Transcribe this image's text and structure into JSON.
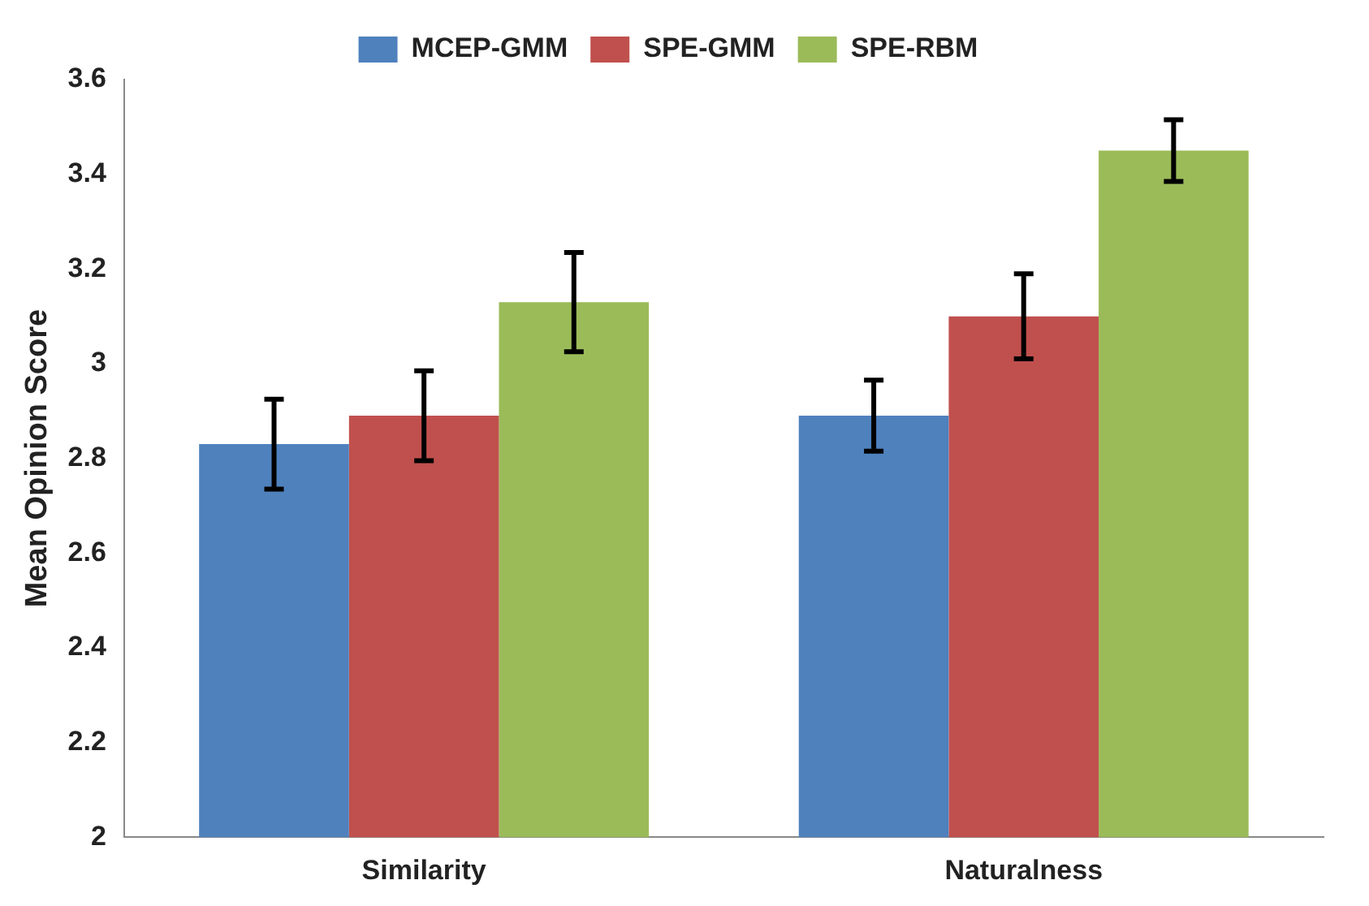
{
  "chart_data": {
    "type": "bar",
    "ylabel": "Mean Opinion Score",
    "categories": [
      "Similarity",
      "Naturalness"
    ],
    "series": [
      {
        "name": "MCEP-GMM",
        "color": "#4f81bd",
        "values": [
          2.83,
          2.89
        ],
        "errors": [
          0.095,
          0.075
        ]
      },
      {
        "name": "SPE-GMM",
        "color": "#c0504d",
        "values": [
          2.89,
          3.1
        ],
        "errors": [
          0.095,
          0.09
        ]
      },
      {
        "name": "SPE-RBM",
        "color": "#9bbb59",
        "values": [
          3.13,
          3.45
        ],
        "errors": [
          0.105,
          0.065
        ]
      }
    ],
    "ylim": [
      2,
      3.6
    ],
    "yticks": [
      2,
      2.2,
      2.4,
      2.6,
      2.8,
      3,
      3.2,
      3.4,
      3.6
    ],
    "grid": false,
    "legend": "top"
  }
}
